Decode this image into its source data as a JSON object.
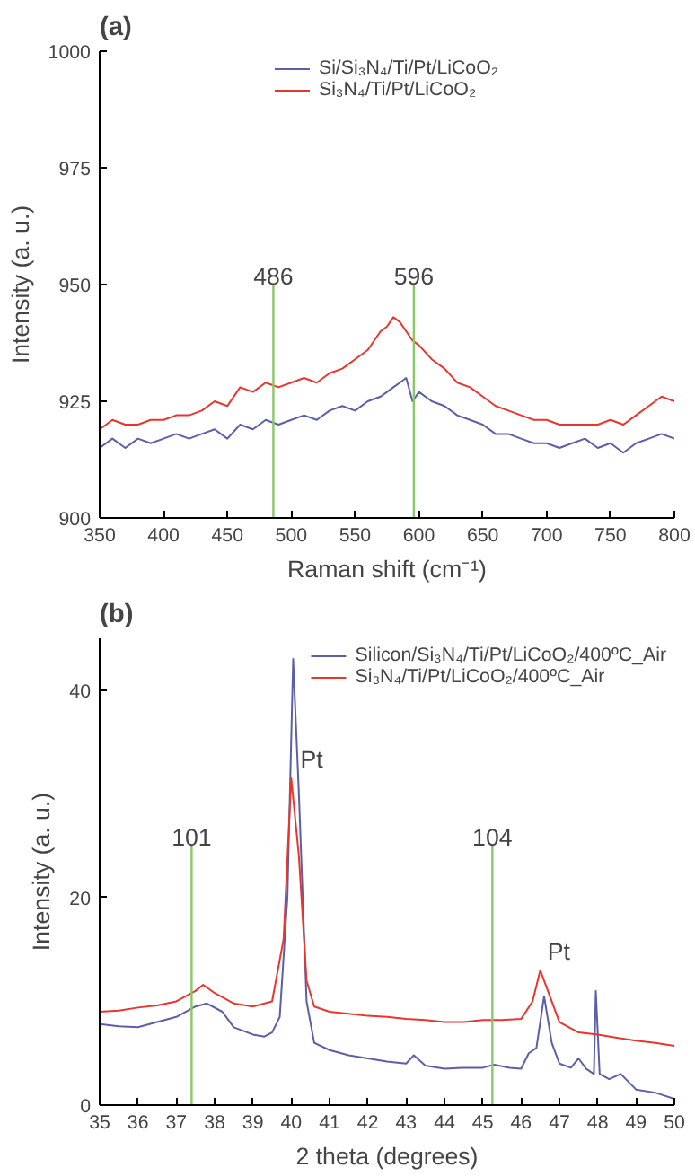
{
  "chart_data": [
    {
      "type": "line",
      "title": "(a)",
      "xlabel": "Raman shift (cm⁻¹)",
      "ylabel": "Intensity (a. u.)",
      "x": [
        350,
        360,
        370,
        380,
        390,
        400,
        410,
        420,
        430,
        440,
        450,
        460,
        470,
        480,
        490,
        500,
        510,
        520,
        530,
        540,
        550,
        560,
        570,
        575,
        580,
        585,
        590,
        595,
        600,
        610,
        620,
        630,
        640,
        650,
        660,
        670,
        680,
        690,
        700,
        710,
        720,
        730,
        740,
        750,
        760,
        770,
        780,
        790,
        800
      ],
      "series": [
        {
          "name": "Si/Si₃N₄/Ti/Pt/LiCoO₂",
          "color": "#5b5fa8",
          "values": [
            915,
            917,
            915,
            917,
            916,
            917,
            918,
            917,
            918,
            919,
            917,
            920,
            919,
            921,
            920,
            921,
            922,
            921,
            923,
            924,
            923,
            925,
            926,
            927,
            928,
            929,
            930,
            925,
            927,
            925,
            924,
            922,
            921,
            920,
            918,
            918,
            917,
            916,
            916,
            915,
            916,
            917,
            915,
            916,
            914,
            916,
            917,
            918,
            917
          ]
        },
        {
          "name": "Si₃N₄/Ti/Pt/LiCoO₂",
          "color": "#e8362e",
          "values": [
            919,
            921,
            920,
            920,
            921,
            921,
            922,
            922,
            923,
            925,
            924,
            928,
            927,
            929,
            928,
            929,
            930,
            929,
            931,
            932,
            934,
            936,
            940,
            941,
            943,
            942,
            940,
            938,
            937,
            934,
            932,
            929,
            928,
            926,
            924,
            923,
            922,
            921,
            921,
            920,
            920,
            920,
            920,
            921,
            920,
            922,
            924,
            926,
            925
          ]
        }
      ],
      "xlim": [
        350,
        800
      ],
      "ylim": [
        900,
        1000
      ],
      "xticks": [
        350,
        400,
        450,
        500,
        550,
        600,
        650,
        700,
        750,
        800
      ],
      "yticks": [
        900,
        925,
        950,
        975,
        1000
      ],
      "ref_lines": [
        {
          "axis": "x",
          "value": 486,
          "label": "486",
          "color": "#8cc66b"
        },
        {
          "axis": "x",
          "value": 596,
          "label": "596",
          "color": "#8cc66b"
        }
      ],
      "grid": false,
      "legend": "top"
    },
    {
      "type": "line",
      "title": "(b)",
      "xlabel": "2 theta (degrees)",
      "ylabel": "Intensity (a. u.)",
      "series": [
        {
          "name": "Silicon/Si₃N₄/Ti/Pt/LiCoO₂/400ºC_Air",
          "color": "#5b5fa8",
          "x": [
            35,
            35.5,
            36,
            36.5,
            37,
            37.5,
            37.8,
            38.2,
            38.5,
            39,
            39.3,
            39.5,
            39.7,
            39.9,
            40.05,
            40.2,
            40.4,
            40.6,
            41,
            41.5,
            42,
            42.5,
            43,
            43.2,
            43.5,
            44,
            44.5,
            45,
            45.3,
            45.7,
            46,
            46.2,
            46.4,
            46.6,
            46.8,
            47,
            47.3,
            47.5,
            47.7,
            47.9,
            47.95,
            48.05,
            48.3,
            48.6,
            49,
            49.5,
            50
          ],
          "values": [
            7.8,
            7.6,
            7.5,
            8,
            8.5,
            9.5,
            9.8,
            9,
            7.5,
            6.8,
            6.6,
            7,
            8.5,
            20,
            43,
            30,
            10,
            6,
            5.3,
            4.8,
            4.5,
            4.2,
            4,
            4.8,
            3.8,
            3.5,
            3.6,
            3.6,
            3.9,
            3.6,
            3.5,
            5,
            5.5,
            10.5,
            6,
            4,
            3.6,
            4.5,
            3.5,
            3,
            11,
            3,
            2.5,
            3,
            1.5,
            1.2,
            0.6
          ]
        },
        {
          "name": "Si₃N₄/Ti/Pt/LiCoO₂/400ºC_Air",
          "color": "#e8362e",
          "x": [
            35,
            35.5,
            36,
            36.5,
            37,
            37.5,
            37.7,
            38,
            38.5,
            39,
            39.5,
            39.8,
            40,
            40.2,
            40.4,
            40.6,
            41,
            41.5,
            42,
            42.5,
            43,
            43.5,
            44,
            44.5,
            45,
            45.5,
            46,
            46.3,
            46.5,
            46.7,
            47,
            47.5,
            48,
            48.5,
            49,
            49.5,
            50
          ],
          "values": [
            9,
            9.1,
            9.4,
            9.6,
            10,
            11,
            11.6,
            10.8,
            9.8,
            9.5,
            10,
            16,
            31.5,
            24,
            12,
            9.5,
            9,
            8.8,
            8.6,
            8.5,
            8.3,
            8.2,
            8,
            8,
            8.2,
            8.2,
            8.3,
            10,
            13,
            11,
            8,
            7,
            6.8,
            6.5,
            6.2,
            6,
            5.7
          ]
        }
      ],
      "xlim": [
        35,
        50
      ],
      "ylim": [
        0,
        45
      ],
      "xticks": [
        35,
        36,
        37,
        38,
        39,
        40,
        41,
        42,
        43,
        44,
        45,
        46,
        47,
        48,
        49,
        50
      ],
      "yticks": [
        0,
        20,
        40
      ],
      "ref_lines": [
        {
          "axis": "x",
          "value": 37.4,
          "color": "#8cc66b"
        },
        {
          "axis": "x",
          "value": 45.25,
          "color": "#8cc66b"
        }
      ],
      "annotations": [
        {
          "text": "101",
          "x": 37.4,
          "y": 25
        },
        {
          "text": "104",
          "x": 45.25,
          "y": 25
        },
        {
          "text": "Pt",
          "x": 40.05,
          "y": 31.5
        },
        {
          "text": "Pt",
          "x": 46.5,
          "y": 13
        }
      ],
      "grid": false,
      "legend": "top right"
    }
  ]
}
